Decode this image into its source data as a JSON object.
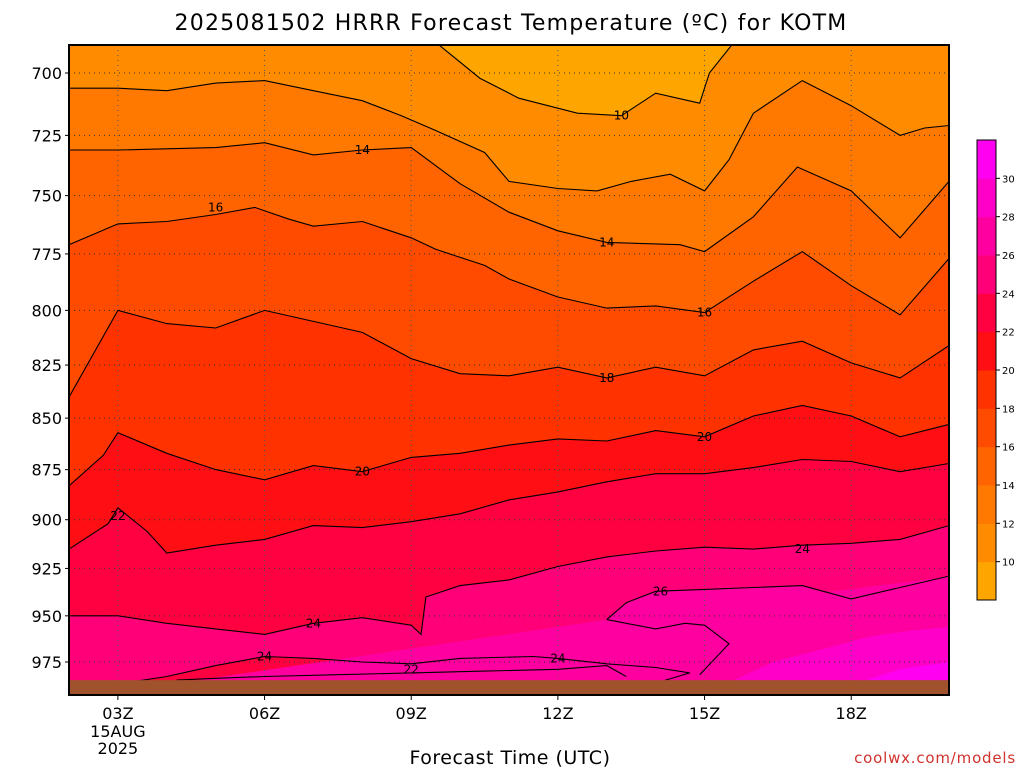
{
  "title": "2025081502 HRRR Forecast Temperature (ºC) for KOTM",
  "credit": "coolwx.com/models",
  "chart_data": {
    "type": "heatmap",
    "title": "2025081502 HRRR Forecast Temperature (ºC) for KOTM",
    "xlabel": "Forecast Time (UTC)",
    "ylabel": "",
    "x_ticks": [
      {
        "hour": 3,
        "label": "03Z",
        "sub": [
          "15AUG",
          "2025"
        ]
      },
      {
        "hour": 6,
        "label": "06Z"
      },
      {
        "hour": 9,
        "label": "09Z"
      },
      {
        "hour": 12,
        "label": "12Z"
      },
      {
        "hour": 15,
        "label": "15Z"
      },
      {
        "hour": 18,
        "label": "18Z"
      }
    ],
    "xlim": [
      2.0,
      20.0
    ],
    "y_ticks": [
      700,
      725,
      750,
      775,
      800,
      825,
      850,
      875,
      900,
      925,
      950,
      975
    ],
    "y_scale": "log-pressure",
    "y_surface": 985,
    "y_top": 688,
    "grid": true,
    "colorbar": {
      "levels": [
        8,
        10,
        12,
        14,
        16,
        18,
        20,
        22,
        24,
        26,
        28,
        30,
        32
      ],
      "tick_labels": [
        "10",
        "12",
        "14",
        "16",
        "18",
        "20",
        "22",
        "24",
        "26",
        "28",
        "30"
      ],
      "colors": [
        "#ffa500",
        "#ff8c00",
        "#ff7800",
        "#ff6400",
        "#ff4b00",
        "#ff3200",
        "#ff0f14",
        "#ff0040",
        "#ff0078",
        "#ff00a0",
        "#ff00c8",
        "#ff00f0"
      ]
    },
    "contours": [
      {
        "level": 10,
        "labels": [
          {
            "hour": 13.3,
            "p": 717
          }
        ],
        "points": [
          [
            9.5,
            688
          ],
          [
            10.4,
            702
          ],
          [
            11.2,
            710
          ],
          [
            12.4,
            716
          ],
          [
            13.3,
            717
          ],
          [
            14.0,
            708
          ],
          [
            14.9,
            712
          ],
          [
            15.1,
            700
          ],
          [
            15.6,
            688
          ]
        ]
      },
      {
        "level": 12,
        "labels": [],
        "points": [
          [
            2.0,
            706
          ],
          [
            3.0,
            706
          ],
          [
            4.0,
            707
          ],
          [
            5.0,
            704
          ],
          [
            6.0,
            703
          ],
          [
            7.0,
            707
          ],
          [
            8.0,
            711
          ],
          [
            8.8,
            717
          ],
          [
            9.5,
            723
          ],
          [
            10.5,
            732
          ],
          [
            11.0,
            744
          ],
          [
            12.0,
            747
          ],
          [
            12.8,
            748
          ],
          [
            13.5,
            744
          ],
          [
            14.3,
            741
          ],
          [
            15.0,
            748
          ],
          [
            15.5,
            735
          ],
          [
            16.0,
            716
          ],
          [
            17.0,
            703
          ],
          [
            18.0,
            713
          ],
          [
            19.0,
            725
          ],
          [
            19.5,
            722
          ],
          [
            20.0,
            721
          ]
        ]
      },
      {
        "level": 14,
        "labels": [
          {
            "hour": 8.0,
            "p": 731
          },
          {
            "hour": 13.0,
            "p": 770
          }
        ],
        "points": [
          [
            2.0,
            731
          ],
          [
            3.0,
            731
          ],
          [
            5.0,
            730
          ],
          [
            6.0,
            728
          ],
          [
            7.0,
            733
          ],
          [
            8.0,
            731
          ],
          [
            9.0,
            730
          ],
          [
            10.0,
            745
          ],
          [
            11.0,
            757
          ],
          [
            12.0,
            765
          ],
          [
            13.0,
            770
          ],
          [
            14.5,
            771
          ],
          [
            15.0,
            774
          ],
          [
            16.0,
            759
          ],
          [
            16.9,
            738
          ],
          [
            18.0,
            748
          ],
          [
            19.0,
            768
          ],
          [
            20.0,
            744
          ]
        ]
      },
      {
        "level": 16,
        "labels": [
          {
            "hour": 5.0,
            "p": 755
          },
          {
            "hour": 15.0,
            "p": 801
          }
        ],
        "points": [
          [
            2.0,
            771
          ],
          [
            3.0,
            762
          ],
          [
            4.0,
            761
          ],
          [
            5.0,
            758
          ],
          [
            5.8,
            755
          ],
          [
            6.5,
            760
          ],
          [
            7.0,
            763
          ],
          [
            8.0,
            761
          ],
          [
            9.0,
            768
          ],
          [
            9.5,
            773
          ],
          [
            10.5,
            780
          ],
          [
            11.0,
            786
          ],
          [
            12.0,
            794
          ],
          [
            13.0,
            799
          ],
          [
            14.0,
            798
          ],
          [
            15.0,
            801
          ],
          [
            16.0,
            787
          ],
          [
            17.0,
            774
          ],
          [
            18.0,
            789
          ],
          [
            19.0,
            802
          ],
          [
            20.0,
            777
          ]
        ]
      },
      {
        "level": 18,
        "labels": [
          {
            "hour": 13.0,
            "p": 831
          }
        ],
        "points": [
          [
            2.0,
            840
          ],
          [
            3.0,
            800
          ],
          [
            4.0,
            806
          ],
          [
            5.0,
            808
          ],
          [
            6.0,
            800
          ],
          [
            7.0,
            805
          ],
          [
            8.0,
            810
          ],
          [
            9.0,
            822
          ],
          [
            10.0,
            829
          ],
          [
            11.0,
            830
          ],
          [
            12.0,
            826
          ],
          [
            13.0,
            831
          ],
          [
            14.0,
            826
          ],
          [
            15.0,
            830
          ],
          [
            16.0,
            818
          ],
          [
            17.0,
            814
          ],
          [
            18.0,
            824
          ],
          [
            19.0,
            831
          ],
          [
            20.0,
            816
          ]
        ]
      },
      {
        "level": 20,
        "labels": [
          {
            "hour": 8.0,
            "p": 876
          },
          {
            "hour": 15.0,
            "p": 859
          }
        ],
        "points": [
          [
            2.0,
            883
          ],
          [
            2.7,
            868
          ],
          [
            3.0,
            857
          ],
          [
            4.0,
            867
          ],
          [
            5.0,
            875
          ],
          [
            6.0,
            880
          ],
          [
            7.0,
            873
          ],
          [
            8.0,
            876
          ],
          [
            9.0,
            869
          ],
          [
            10.0,
            867
          ],
          [
            11.0,
            863
          ],
          [
            12.0,
            860
          ],
          [
            13.0,
            861
          ],
          [
            14.0,
            856
          ],
          [
            15.0,
            859
          ],
          [
            16.0,
            849
          ],
          [
            17.0,
            844
          ],
          [
            18.0,
            849
          ],
          [
            19.0,
            859
          ],
          [
            20.0,
            853
          ]
        ]
      },
      {
        "level": 22,
        "labels": [
          {
            "hour": 3.0,
            "p": 898
          },
          {
            "hour": 9.0,
            "p": 979
          }
        ],
        "points": [
          [
            2.0,
            915
          ],
          [
            2.8,
            902
          ],
          [
            3.0,
            894
          ],
          [
            3.6,
            906
          ],
          [
            4.0,
            917
          ],
          [
            5.0,
            913
          ],
          [
            6.0,
            910
          ],
          [
            7.0,
            903
          ],
          [
            8.0,
            904
          ],
          [
            9.0,
            901
          ],
          [
            10.0,
            897
          ],
          [
            11.0,
            890
          ],
          [
            12.0,
            886
          ],
          [
            13.0,
            881
          ],
          [
            14.0,
            877
          ],
          [
            15.0,
            877
          ],
          [
            16.0,
            874
          ],
          [
            17.0,
            870
          ],
          [
            18.0,
            871
          ],
          [
            19.0,
            876
          ],
          [
            20.0,
            872
          ]
        ],
        "extra": [
          [
            4.2,
            985
          ],
          [
            5.0,
            984
          ],
          [
            6.0,
            983
          ],
          [
            7.5,
            982
          ],
          [
            9.0,
            981
          ],
          [
            10.5,
            980
          ],
          [
            12.0,
            979
          ],
          [
            13.0,
            977
          ],
          [
            13.4,
            983
          ]
        ]
      },
      {
        "level": 24,
        "labels": [
          {
            "hour": 7.0,
            "p": 954
          },
          {
            "hour": 6.0,
            "p": 972
          },
          {
            "hour": 12.0,
            "p": 973
          },
          {
            "hour": 17.0,
            "p": 915
          }
        ],
        "points": [
          [
            2.0,
            950
          ],
          [
            3.0,
            950
          ],
          [
            4.0,
            954
          ],
          [
            5.0,
            957
          ],
          [
            6.0,
            960
          ],
          [
            7.0,
            954
          ],
          [
            8.0,
            951
          ],
          [
            9.0,
            955
          ],
          [
            9.2,
            960
          ],
          [
            9.3,
            940
          ],
          [
            10.0,
            934
          ],
          [
            11.0,
            931
          ],
          [
            12.0,
            924
          ],
          [
            13.0,
            919
          ],
          [
            14.0,
            916
          ],
          [
            15.0,
            914
          ],
          [
            16.0,
            915
          ],
          [
            17.0,
            913
          ],
          [
            18.0,
            912
          ],
          [
            19.0,
            910
          ],
          [
            20.0,
            903
          ]
        ],
        "extra": [
          [
            2.8,
            988
          ],
          [
            4.0,
            983
          ],
          [
            5.0,
            977
          ],
          [
            6.0,
            972
          ],
          [
            7.0,
            973
          ],
          [
            8.0,
            975
          ],
          [
            9.0,
            976
          ],
          [
            10.0,
            973
          ],
          [
            11.5,
            972
          ],
          [
            12.0,
            973
          ],
          [
            13.0,
            976
          ],
          [
            14.0,
            978
          ],
          [
            14.7,
            981
          ],
          [
            14.2,
            985
          ]
        ]
      },
      {
        "level": 26,
        "labels": [
          {
            "hour": 14.1,
            "p": 937
          }
        ],
        "points": [
          [
            13.0,
            952
          ],
          [
            13.4,
            943
          ],
          [
            14.0,
            937
          ],
          [
            15.0,
            936
          ],
          [
            16.0,
            935
          ],
          [
            17.0,
            934
          ],
          [
            18.0,
            941
          ],
          [
            19.0,
            935
          ],
          [
            20.0,
            929
          ]
        ],
        "extra": [
          [
            13.0,
            952
          ],
          [
            14.0,
            957
          ],
          [
            14.6,
            954
          ],
          [
            15.0,
            955
          ],
          [
            15.5,
            965
          ],
          [
            14.9,
            982
          ]
        ]
      }
    ],
    "surface_strip_color": "#a0522d"
  }
}
